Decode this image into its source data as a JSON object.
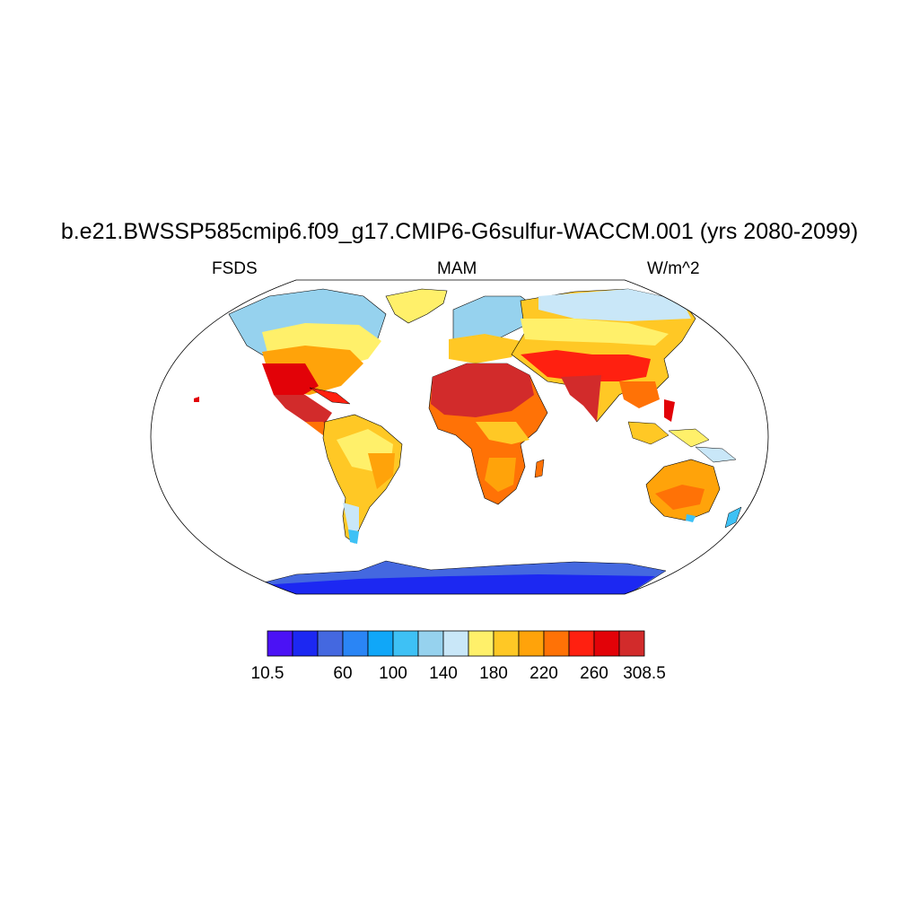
{
  "title": "b.e21.BWSSP585cmip6.f09_g17.CMIP6-G6sulfur-WACCM.001 (yrs 2080-2099)",
  "left_string": "FSDS",
  "center_string": "MAM",
  "right_string": "W/m^2",
  "map": {
    "projection": "Robinson",
    "variable": "FSDS",
    "season": "MAM",
    "units": "W/m^2"
  },
  "colorbar": {
    "colors": [
      "#4b12f5",
      "#1c28f2",
      "#4468e0",
      "#2a85f5",
      "#10a7f8",
      "#3ec1f5",
      "#96d2ee",
      "#c9e7f8",
      "#fff06a",
      "#ffc825",
      "#ffa30a",
      "#ff7206",
      "#ff2010",
      "#e20208",
      "#d22b2b"
    ],
    "tick_labels": [
      "10.5",
      "60",
      "100",
      "140",
      "180",
      "220",
      "260",
      "308.5"
    ],
    "tick_values": [
      10.5,
      60,
      100,
      140,
      180,
      220,
      260,
      308.5
    ]
  }
}
